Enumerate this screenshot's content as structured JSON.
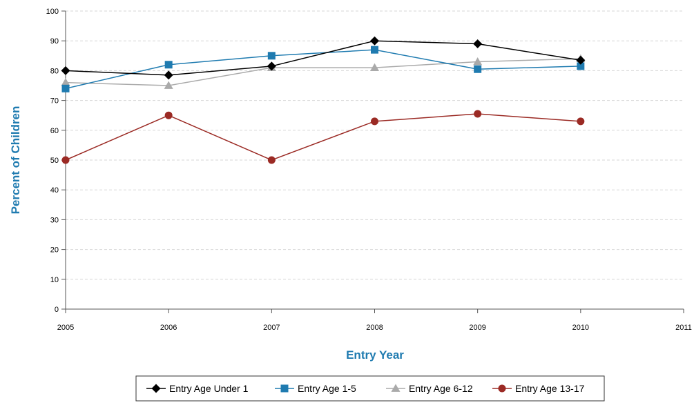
{
  "chart_data": {
    "type": "line",
    "xlabel": "Entry Year",
    "ylabel": "Percent of Children",
    "x_ticks": [
      "2005",
      "2006",
      "2007",
      "2008",
      "2009",
      "2010",
      "2011"
    ],
    "y_ticks": [
      "0",
      "10",
      "20",
      "30",
      "40",
      "50",
      "60",
      "70",
      "80",
      "90",
      "100"
    ],
    "xlim": [
      2005,
      2011
    ],
    "ylim": [
      0,
      100
    ],
    "grid": "horizontal-dashed",
    "legend_position": "bottom",
    "series": [
      {
        "name": "Entry Age Under 1",
        "color": "#000000",
        "marker": "diamond",
        "x": [
          2005,
          2006,
          2007,
          2008,
          2009,
          2010
        ],
        "values": [
          80,
          78.5,
          81.5,
          90,
          89,
          83.5
        ]
      },
      {
        "name": "Entry Age 1-5",
        "color": "#1f7bb0",
        "marker": "square",
        "x": [
          2005,
          2006,
          2007,
          2008,
          2009,
          2010
        ],
        "values": [
          74,
          82,
          85,
          87,
          80.5,
          81.5
        ]
      },
      {
        "name": "Entry Age 6-12",
        "color": "#aaaaaa",
        "marker": "triangle",
        "x": [
          2005,
          2006,
          2007,
          2008,
          2009,
          2010
        ],
        "values": [
          76,
          75,
          81,
          81,
          83,
          84
        ]
      },
      {
        "name": "Entry Age 13-17",
        "color": "#9b2a24",
        "marker": "circle",
        "x": [
          2005,
          2006,
          2007,
          2008,
          2009,
          2010
        ],
        "values": [
          50,
          65,
          50,
          63,
          65.5,
          63
        ]
      }
    ]
  }
}
